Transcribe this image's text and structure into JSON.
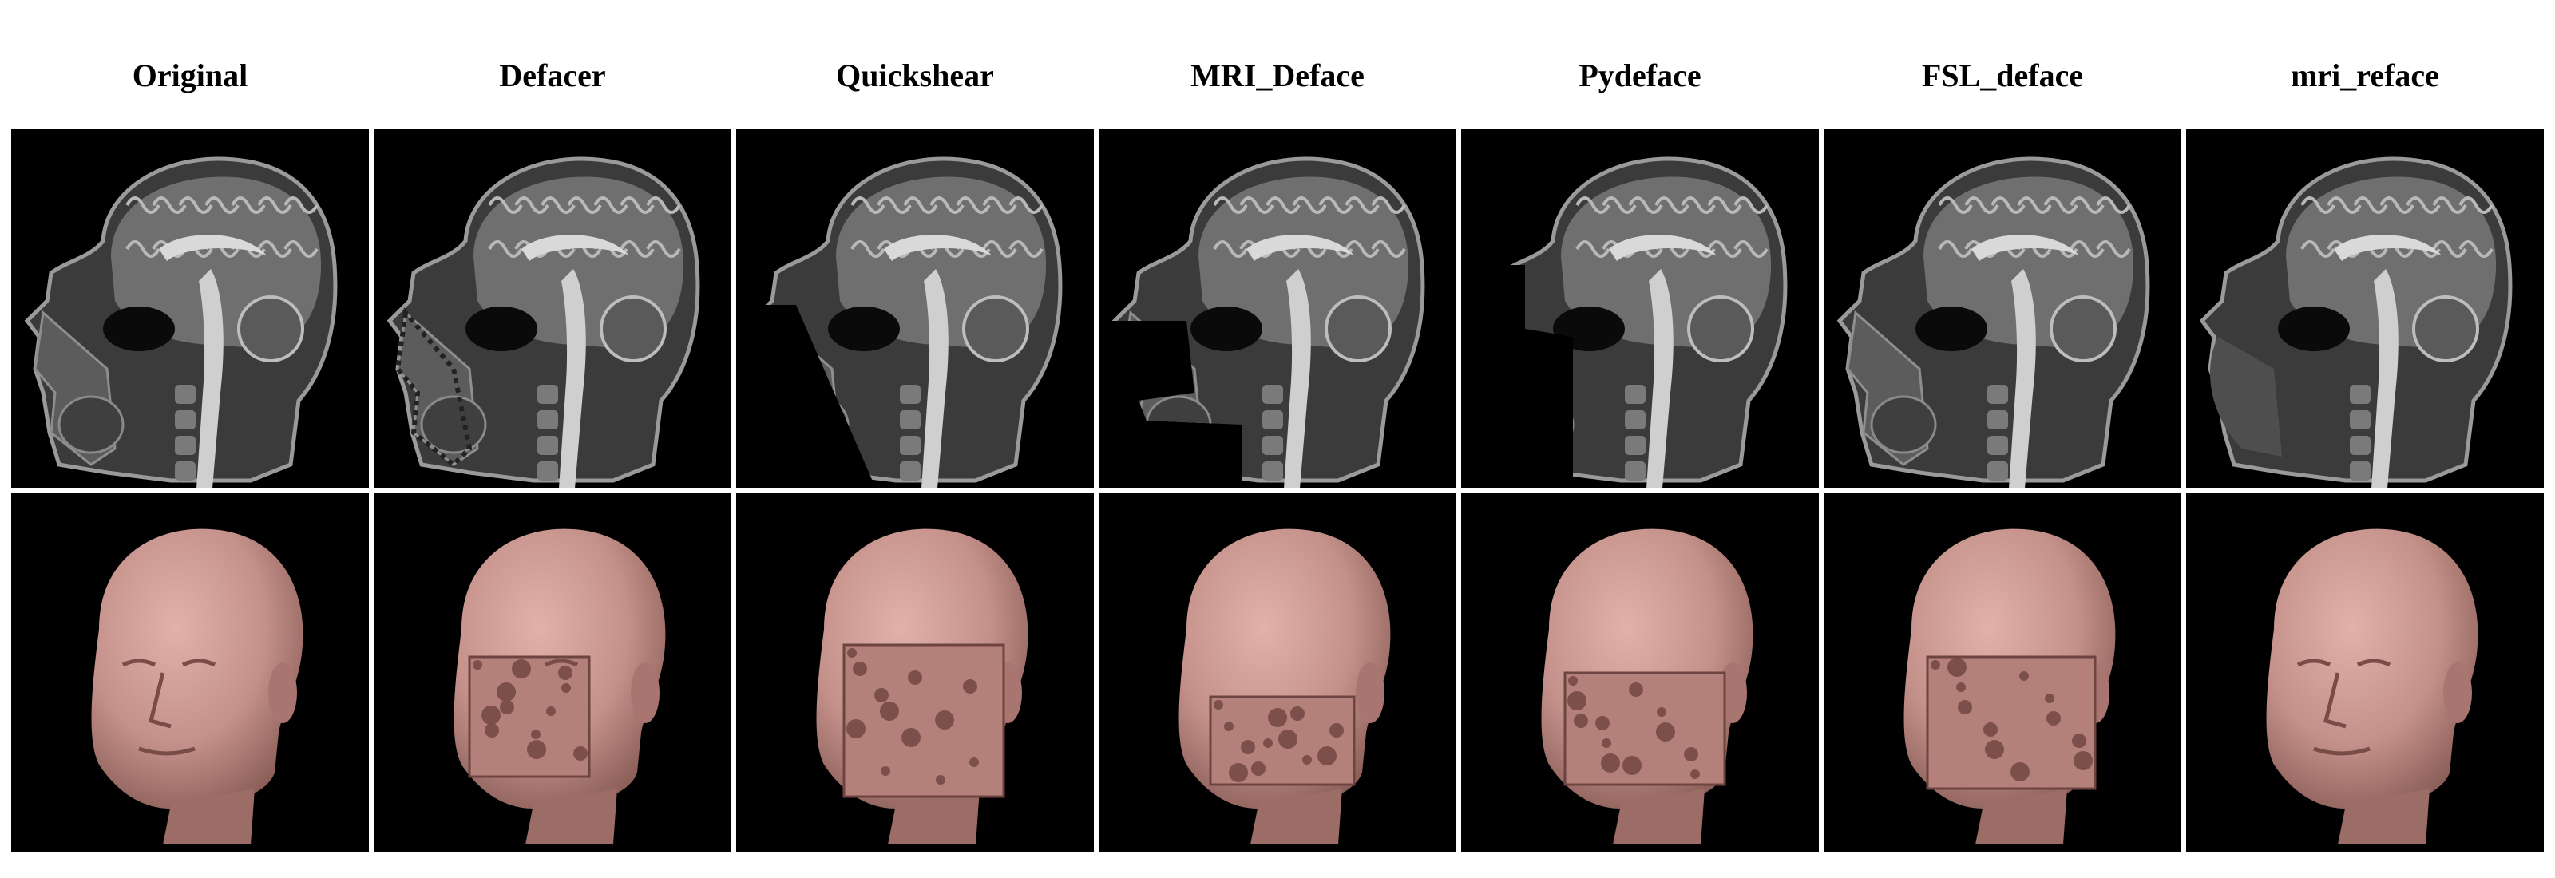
{
  "figure": {
    "columns": [
      {
        "title": "Original",
        "method": "original"
      },
      {
        "title": "Defacer",
        "method": "defacer"
      },
      {
        "title": "Quickshear",
        "method": "quickshear"
      },
      {
        "title": "MRI_Deface",
        "method": "mri_deface"
      },
      {
        "title": "Pydeface",
        "method": "pydeface"
      },
      {
        "title": "FSL_deface",
        "method": "fsl_deface"
      },
      {
        "title": "mri_reface",
        "method": "mri_reface"
      }
    ],
    "rows": [
      {
        "kind": "sagittal-mri-slice"
      },
      {
        "kind": "3d-head-surface-render"
      }
    ],
    "colors": {
      "background": "#000000",
      "separator": "#ffffff",
      "skin": "#c4918a",
      "tissue_light": "#d9d9d9",
      "tissue_dark": "#555555"
    }
  }
}
